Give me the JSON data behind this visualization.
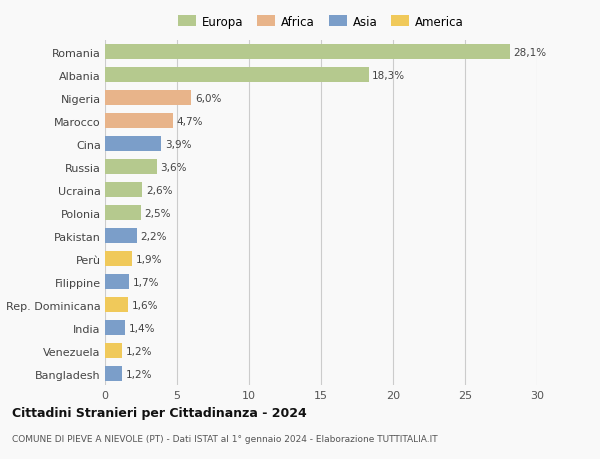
{
  "countries": [
    "Romania",
    "Albania",
    "Nigeria",
    "Marocco",
    "Cina",
    "Russia",
    "Ucraina",
    "Polonia",
    "Pakistan",
    "Perù",
    "Filippine",
    "Rep. Dominicana",
    "India",
    "Venezuela",
    "Bangladesh"
  ],
  "values": [
    28.1,
    18.3,
    6.0,
    4.7,
    3.9,
    3.6,
    2.6,
    2.5,
    2.2,
    1.9,
    1.7,
    1.6,
    1.4,
    1.2,
    1.2
  ],
  "labels": [
    "28,1%",
    "18,3%",
    "6,0%",
    "4,7%",
    "3,9%",
    "3,6%",
    "2,6%",
    "2,5%",
    "2,2%",
    "1,9%",
    "1,7%",
    "1,6%",
    "1,4%",
    "1,2%",
    "1,2%"
  ],
  "continents": [
    "Europa",
    "Europa",
    "Africa",
    "Africa",
    "Asia",
    "Europa",
    "Europa",
    "Europa",
    "Asia",
    "America",
    "Asia",
    "America",
    "Asia",
    "America",
    "Asia"
  ],
  "continent_colors": {
    "Europa": "#b5c98e",
    "Africa": "#e8b48a",
    "Asia": "#7b9ec9",
    "America": "#f0c95a"
  },
  "legend_order": [
    "Europa",
    "Africa",
    "Asia",
    "America"
  ],
  "xlim": [
    0,
    30
  ],
  "xticks": [
    0,
    5,
    10,
    15,
    20,
    25,
    30
  ],
  "title": "Cittadini Stranieri per Cittadinanza - 2024",
  "subtitle": "COMUNE DI PIEVE A NIEVOLE (PT) - Dati ISTAT al 1° gennaio 2024 - Elaborazione TUTTITALIA.IT",
  "bg_color": "#f9f9f9",
  "grid_color": "#cccccc",
  "bar_height": 0.65
}
